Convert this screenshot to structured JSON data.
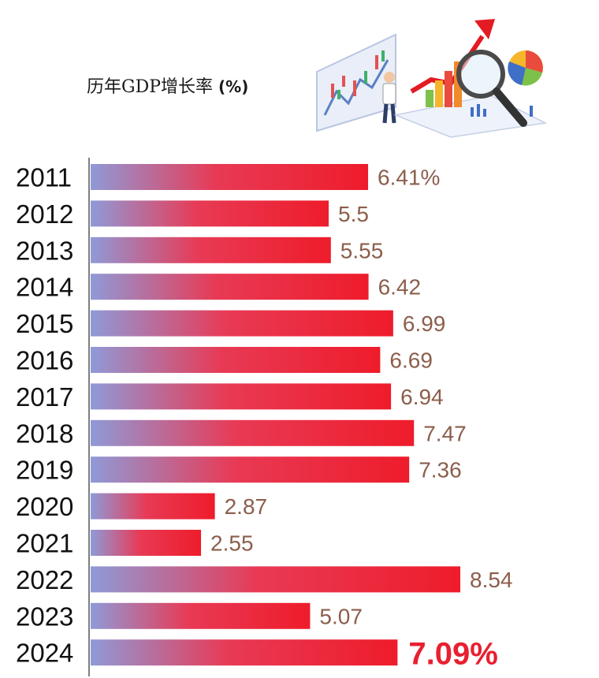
{
  "title": "历年GDP增长率",
  "unit": "(%)",
  "chart_data": {
    "type": "bar",
    "orientation": "horizontal",
    "title": "历年GDP增长率 (%)",
    "categories": [
      "2011",
      "2012",
      "2013",
      "2014",
      "2015",
      "2016",
      "2017",
      "2018",
      "2019",
      "2020",
      "2021",
      "2022",
      "2023",
      "2024"
    ],
    "values": [
      6.41,
      5.5,
      5.55,
      6.42,
      6.99,
      6.69,
      6.94,
      7.47,
      7.36,
      2.87,
      2.55,
      8.54,
      5.07,
      7.09
    ],
    "value_labels": [
      "6.41%",
      "5.5",
      "5.55",
      "6.42",
      "6.99",
      "6.69",
      "6.94",
      "7.47",
      "7.36",
      "2.87",
      "2.55",
      "8.54",
      "5.07",
      "7.09%"
    ],
    "highlight_index": 13,
    "xlim": [
      0,
      8.54
    ],
    "grid": false,
    "colors": {
      "bar_start": "#8f9ad8",
      "bar_end": "#ee1c2b",
      "value_text": "#8b5e4b",
      "highlight_text": "#e8202f",
      "axis": "#555555"
    }
  },
  "illustration": {
    "name": "gdp-growth-illustration-icon"
  }
}
